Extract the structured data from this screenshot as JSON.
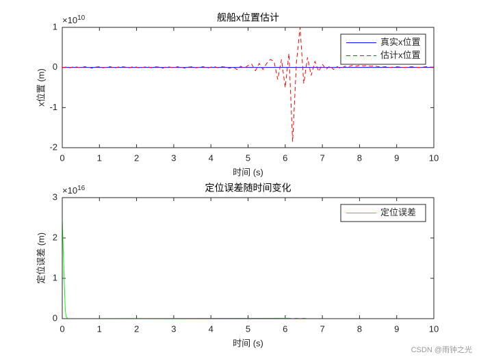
{
  "chart_data": [
    {
      "type": "line",
      "title": "舰船x位置估计",
      "xlabel": "时间 (s)",
      "ylabel": "x位置 (m)",
      "y_multiplier": {
        "prefix": "×10",
        "exponent": "10"
      },
      "xlim": [
        0,
        10
      ],
      "xticks": [
        0,
        1,
        2,
        3,
        4,
        5,
        6,
        7,
        8,
        9,
        10
      ],
      "ylim": [
        -2,
        1
      ],
      "yticks": [
        -2,
        -1,
        0,
        1
      ],
      "legend": "northeast",
      "x": [
        0,
        0.1,
        0.2,
        0.3,
        0.4,
        0.5,
        0.6,
        0.7,
        0.8,
        0.9,
        1,
        1.1,
        1.2,
        1.3,
        1.4,
        1.5,
        1.6,
        1.7,
        1.8,
        1.9,
        2,
        2.1,
        2.2,
        2.3,
        2.4,
        2.5,
        2.6,
        2.7,
        2.8,
        2.9,
        3,
        3.1,
        3.2,
        3.3,
        3.4,
        3.5,
        3.6,
        3.7,
        3.8,
        3.9,
        4,
        4.1,
        4.2,
        4.3,
        4.4,
        4.5,
        4.6,
        4.7,
        4.8,
        4.9,
        5,
        5.1,
        5.2,
        5.3,
        5.4,
        5.5,
        5.6,
        5.7,
        5.8,
        5.9,
        6,
        6.1,
        6.2,
        6.3,
        6.4,
        6.5,
        6.6,
        6.7,
        6.8,
        6.9,
        7,
        7.1,
        7.2,
        7.3,
        7.4,
        7.5,
        7.6,
        7.7,
        7.8,
        7.9,
        8,
        8.1,
        8.2,
        8.3,
        8.4,
        8.5,
        8.6,
        8.7,
        8.8,
        8.9,
        9,
        9.1,
        9.2,
        9.3,
        9.4,
        9.5,
        9.6,
        9.7,
        9.8,
        9.9,
        10
      ],
      "series": [
        {
          "name": "真实x位置",
          "color": "#0000ff",
          "linestyle": "-",
          "values": [
            0,
            0,
            0,
            0,
            0,
            0,
            0,
            0,
            0,
            0,
            0,
            0,
            0,
            0,
            0,
            0,
            0,
            0,
            0,
            0,
            0,
            0,
            0,
            0,
            0,
            0,
            0,
            0,
            0,
            0,
            0,
            0,
            0,
            0,
            0,
            0,
            0,
            0,
            0,
            0,
            0,
            0,
            0,
            0,
            0,
            0,
            0,
            0,
            0,
            0,
            0,
            0,
            0,
            0,
            0,
            0,
            0,
            0,
            0,
            0,
            0,
            0,
            0,
            0,
            0,
            0,
            0,
            0,
            0,
            0,
            0,
            0,
            0,
            0,
            0,
            0,
            0,
            0,
            0,
            0,
            0,
            0,
            0,
            0,
            0,
            0,
            0,
            0,
            0,
            0,
            0,
            0,
            0,
            0,
            0,
            0,
            0,
            0,
            0,
            0,
            0
          ]
        },
        {
          "name": "估计x位置",
          "color": "#ff0000",
          "linestyle": "--",
          "values": [
            0,
            0.01,
            -0.01,
            0.02,
            0.01,
            -0.01,
            0.02,
            0.01,
            -0.02,
            0.01,
            0.02,
            -0.01,
            0.01,
            0.02,
            -0.02,
            0.01,
            0.02,
            0.01,
            -0.01,
            0.02,
            0.01,
            -0.02,
            0.01,
            0.02,
            -0.01,
            0.02,
            0.01,
            -0.02,
            0.02,
            0.01,
            -0.01,
            0.02,
            0.01,
            -0.02,
            0.01,
            0.02,
            -0.01,
            0.01,
            0.02,
            -0.02,
            0.01,
            0.02,
            -0.01,
            0.02,
            0.01,
            -0.02,
            0.01,
            -0.05,
            0.03,
            -0.02,
            0.05,
            0.08,
            -0.08,
            0.1,
            -0.05,
            0.1,
            0.2,
            0.15,
            -0.3,
            0.2,
            -0.5,
            0.35,
            -1.85,
            0.1,
            1.0,
            -0.4,
            0.25,
            -0.2,
            0.15,
            -0.1,
            0.08,
            -0.05,
            0.04,
            -0.05,
            0.02,
            -0.03,
            0.03,
            0.02,
            0.05,
            0.03,
            0.05,
            0.04,
            0.05,
            0.03,
            0.04,
            0.02,
            0.01,
            0.02,
            0,
            0.01,
            0.02,
            0.01,
            0,
            0.01,
            0.02,
            0.01,
            0,
            0.01,
            0.02,
            0.01,
            0.01
          ]
        }
      ]
    },
    {
      "type": "line",
      "title": "定位误差随时间变化",
      "xlabel": "时间 (s)",
      "ylabel": "定位误差 (m)",
      "y_multiplier": {
        "prefix": "×10",
        "exponent": "16"
      },
      "xlim": [
        0,
        10
      ],
      "xticks": [
        0,
        1,
        2,
        3,
        4,
        5,
        6,
        7,
        8,
        9,
        10
      ],
      "ylim": [
        0,
        3
      ],
      "yticks": [
        0,
        1,
        2,
        3
      ],
      "legend": "northeast",
      "x": [
        0,
        0.05,
        0.08,
        0.1,
        0.15,
        6.1,
        6.2,
        6.3,
        6.4,
        6.5,
        6.6,
        10
      ],
      "series": [
        {
          "name": "定位误差",
          "color": "#00ff00",
          "linestyle": "-",
          "values": [
            2.45,
            1.0,
            0.25,
            0.05,
            0,
            0.01,
            0,
            0.01,
            0,
            0.01,
            0,
            0
          ]
        }
      ]
    }
  ],
  "watermark": "CSDN @雨钟之光"
}
